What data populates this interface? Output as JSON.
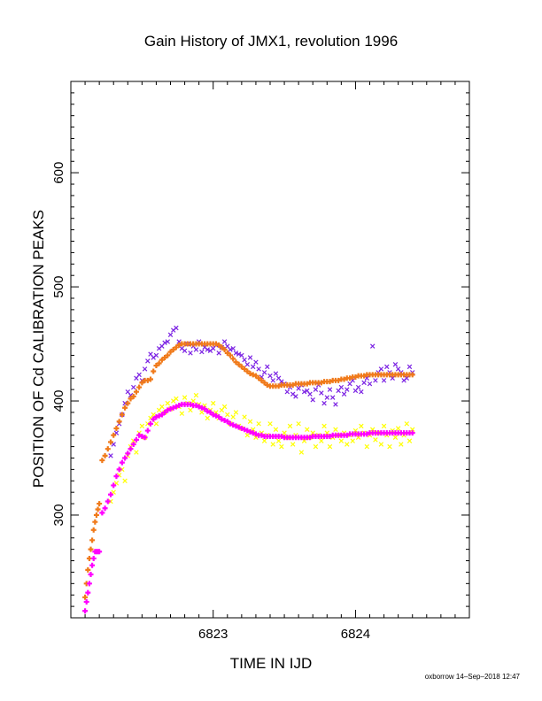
{
  "chart_data": {
    "type": "scatter",
    "title": "Gain History of JMX1, revolution 1996",
    "xlabel": "TIME IN IJD",
    "ylabel": "POSITION OF Cd CALIBRATION PEAKS",
    "xlim": [
      6822.0,
      6824.8
    ],
    "ylim": [
      210,
      680
    ],
    "x_ticks": [
      6823,
      6824
    ],
    "x_tick_labels": [
      "6823",
      "6824"
    ],
    "y_ticks": [
      300,
      400,
      500,
      600
    ],
    "y_tick_labels": [
      "300",
      "400",
      "500",
      "600"
    ],
    "grid": false,
    "legend": "none",
    "series": [
      {
        "marker": "x",
        "color": "#7b22e3",
        "x": [
          6822.28,
          6822.3,
          6822.32,
          6822.34,
          6822.36,
          6822.38,
          6822.4,
          6822.42,
          6822.44,
          6822.46,
          6822.48,
          6822.5,
          6822.52,
          6822.54,
          6822.56,
          6822.58,
          6822.6,
          6822.62,
          6822.64,
          6822.66,
          6822.68,
          6822.7,
          6822.72,
          6822.74,
          6822.76,
          6822.78,
          6822.8,
          6822.82,
          6822.84,
          6822.86,
          6822.88,
          6822.9,
          6822.92,
          6822.94,
          6822.96,
          6822.98,
          6823.0,
          6823.02,
          6823.04,
          6823.06,
          6823.08,
          6823.1,
          6823.12,
          6823.14,
          6823.16,
          6823.18,
          6823.2,
          6823.22,
          6823.24,
          6823.26,
          6823.28,
          6823.3,
          6823.32,
          6823.34,
          6823.36,
          6823.38,
          6823.4,
          6823.42,
          6823.44,
          6823.46,
          6823.48,
          6823.5,
          6823.52,
          6823.54,
          6823.56,
          6823.58,
          6823.6,
          6823.62,
          6823.64,
          6823.66,
          6823.68,
          6823.7,
          6823.72,
          6823.74,
          6823.76,
          6823.78,
          6823.8,
          6823.82,
          6823.84,
          6823.86,
          6823.88,
          6823.9,
          6823.92,
          6823.94,
          6823.96,
          6823.98,
          6824.0,
          6824.02,
          6824.04,
          6824.06,
          6824.08,
          6824.1,
          6824.12,
          6824.14,
          6824.16,
          6824.18,
          6824.2,
          6824.22,
          6824.24,
          6824.26,
          6824.28,
          6824.3,
          6824.32,
          6824.34,
          6824.36,
          6824.38,
          6824.4
        ],
        "y": [
          352,
          362,
          372,
          380,
          388,
          398,
          408,
          405,
          412,
          420,
          423,
          418,
          428,
          435,
          441,
          438,
          440,
          446,
          448,
          451,
          452,
          458,
          462,
          464,
          452,
          446,
          444,
          450,
          442,
          448,
          445,
          452,
          443,
          447,
          445,
          444,
          446,
          449,
          442,
          447,
          452,
          448,
          445,
          446,
          442,
          441,
          440,
          436,
          432,
          438,
          430,
          434,
          428,
          421,
          425,
          430,
          422,
          418,
          424,
          420,
          417,
          415,
          408,
          412,
          406,
          404,
          411,
          414,
          408,
          409,
          406,
          401,
          410,
          414,
          407,
          398,
          403,
          410,
          403,
          397,
          409,
          412,
          406,
          410,
          415,
          418,
          409,
          412,
          408,
          416,
          420,
          415,
          448,
          418,
          425,
          428,
          418,
          430,
          425,
          420,
          432,
          428,
          425,
          418,
          420,
          430,
          425
        ]
      },
      {
        "marker": "+",
        "color": "#f07a1a",
        "x": [
          6822.1,
          6822.11,
          6822.12,
          6822.13,
          6822.14,
          6822.15,
          6822.16,
          6822.17,
          6822.18,
          6822.19,
          6822.2,
          6822.22,
          6822.24,
          6822.26,
          6822.28,
          6822.3,
          6822.32,
          6822.34,
          6822.36,
          6822.38,
          6822.4,
          6822.42,
          6822.44,
          6822.46,
          6822.48,
          6822.5,
          6822.52,
          6822.54,
          6822.56,
          6822.58,
          6822.6,
          6822.62,
          6822.64,
          6822.66,
          6822.68,
          6822.7,
          6822.72,
          6822.74,
          6822.76,
          6822.78,
          6822.8,
          6822.82,
          6822.84,
          6822.86,
          6822.88,
          6822.9,
          6822.92,
          6822.94,
          6822.96,
          6822.98,
          6823.0,
          6823.02,
          6823.04,
          6823.06,
          6823.08,
          6823.1,
          6823.12,
          6823.14,
          6823.16,
          6823.18,
          6823.2,
          6823.22,
          6823.24,
          6823.26,
          6823.28,
          6823.3,
          6823.32,
          6823.34,
          6823.36,
          6823.38,
          6823.4,
          6823.42,
          6823.44,
          6823.46,
          6823.48,
          6823.5,
          6823.52,
          6823.54,
          6823.56,
          6823.58,
          6823.6,
          6823.62,
          6823.64,
          6823.66,
          6823.68,
          6823.7,
          6823.72,
          6823.74,
          6823.76,
          6823.78,
          6823.8,
          6823.82,
          6823.84,
          6823.86,
          6823.88,
          6823.9,
          6823.92,
          6823.94,
          6823.96,
          6823.98,
          6824.0,
          6824.02,
          6824.04,
          6824.06,
          6824.08,
          6824.1,
          6824.12,
          6824.14,
          6824.16,
          6824.18,
          6824.2,
          6824.22,
          6824.24,
          6824.26,
          6824.28,
          6824.3,
          6824.32,
          6824.34,
          6824.36,
          6824.38,
          6824.4
        ],
        "y": [
          228,
          240,
          252,
          262,
          270,
          278,
          287,
          294,
          300,
          305,
          310,
          348,
          352,
          358,
          364,
          370,
          376,
          382,
          388,
          394,
          398,
          402,
          404,
          408,
          412,
          416,
          418,
          418,
          419,
          426,
          431,
          433,
          436,
          438,
          440,
          443,
          445,
          447,
          449,
          450,
          450,
          450,
          450,
          450,
          450,
          450,
          450,
          450,
          450,
          450,
          450,
          450,
          449,
          447,
          445,
          442,
          440,
          437,
          434,
          432,
          430,
          428,
          426,
          424,
          423,
          422,
          420,
          418,
          416,
          414,
          413,
          413,
          413,
          413,
          414,
          414,
          414,
          414,
          414,
          415,
          415,
          415,
          415,
          415,
          416,
          416,
          416,
          416,
          416,
          417,
          417,
          417,
          418,
          418,
          418,
          419,
          419,
          420,
          420,
          421,
          421,
          422,
          422,
          422,
          423,
          423,
          423,
          423,
          423,
          423,
          423,
          423,
          423,
          423,
          423,
          423,
          423,
          423,
          423,
          423,
          423
        ]
      },
      {
        "marker": "x",
        "color": "#ffff00",
        "x": [
          6822.28,
          6822.3,
          6822.32,
          6822.34,
          6822.36,
          6822.38,
          6822.4,
          6822.42,
          6822.44,
          6822.46,
          6822.48,
          6822.5,
          6822.52,
          6822.54,
          6822.56,
          6822.58,
          6822.6,
          6822.62,
          6822.64,
          6822.66,
          6822.68,
          6822.7,
          6822.72,
          6822.74,
          6822.76,
          6822.78,
          6822.8,
          6822.82,
          6822.84,
          6822.86,
          6822.88,
          6822.9,
          6822.92,
          6822.94,
          6822.96,
          6822.98,
          6823.0,
          6823.02,
          6823.04,
          6823.06,
          6823.08,
          6823.1,
          6823.12,
          6823.14,
          6823.16,
          6823.18,
          6823.2,
          6823.22,
          6823.24,
          6823.26,
          6823.28,
          6823.3,
          6823.32,
          6823.34,
          6823.36,
          6823.38,
          6823.4,
          6823.42,
          6823.44,
          6823.46,
          6823.48,
          6823.5,
          6823.52,
          6823.54,
          6823.56,
          6823.58,
          6823.6,
          6823.62,
          6823.64,
          6823.66,
          6823.68,
          6823.7,
          6823.72,
          6823.74,
          6823.76,
          6823.78,
          6823.8,
          6823.82,
          6823.84,
          6823.86,
          6823.88,
          6823.9,
          6823.92,
          6823.94,
          6823.96,
          6823.98,
          6824.0,
          6824.02,
          6824.04,
          6824.06,
          6824.08,
          6824.1,
          6824.12,
          6824.14,
          6824.16,
          6824.18,
          6824.2,
          6824.22,
          6824.24,
          6824.26,
          6824.28,
          6824.3,
          6824.32,
          6824.34,
          6824.36,
          6824.38,
          6824.4
        ],
        "y": [
          312,
          320,
          328,
          335,
          340,
          330,
          352,
          360,
          365,
          355,
          372,
          378,
          368,
          380,
          385,
          388,
          380,
          392,
          395,
          390,
          398,
          393,
          400,
          402,
          395,
          389,
          403,
          398,
          392,
          400,
          405,
          397,
          390,
          396,
          385,
          392,
          398,
          390,
          385,
          392,
          395,
          388,
          380,
          386,
          390,
          378,
          376,
          386,
          370,
          382,
          375,
          368,
          380,
          372,
          365,
          370,
          380,
          362,
          375,
          365,
          360,
          372,
          368,
          378,
          362,
          370,
          380,
          355,
          365,
          375,
          368,
          372,
          360,
          370,
          365,
          378,
          372,
          360,
          368,
          375,
          370,
          365,
          372,
          362,
          370,
          365,
          374,
          368,
          378,
          372,
          360,
          370,
          375,
          366,
          372,
          362,
          378,
          370,
          360,
          374,
          368,
          376,
          362,
          370,
          380,
          365,
          375
        ]
      },
      {
        "marker": "+",
        "color": "#ff00ff",
        "x": [
          6822.1,
          6822.11,
          6822.12,
          6822.13,
          6822.14,
          6822.15,
          6822.16,
          6822.17,
          6822.18,
          6822.19,
          6822.2,
          6822.22,
          6822.24,
          6822.26,
          6822.28,
          6822.3,
          6822.32,
          6822.34,
          6822.36,
          6822.38,
          6822.4,
          6822.42,
          6822.44,
          6822.46,
          6822.48,
          6822.5,
          6822.52,
          6822.54,
          6822.56,
          6822.58,
          6822.6,
          6822.62,
          6822.64,
          6822.66,
          6822.68,
          6822.7,
          6822.72,
          6822.74,
          6822.76,
          6822.78,
          6822.8,
          6822.82,
          6822.84,
          6822.86,
          6822.88,
          6822.9,
          6822.92,
          6822.94,
          6822.96,
          6822.98,
          6823.0,
          6823.02,
          6823.04,
          6823.06,
          6823.08,
          6823.1,
          6823.12,
          6823.14,
          6823.16,
          6823.18,
          6823.2,
          6823.22,
          6823.24,
          6823.26,
          6823.28,
          6823.3,
          6823.32,
          6823.34,
          6823.36,
          6823.38,
          6823.4,
          6823.42,
          6823.44,
          6823.46,
          6823.48,
          6823.5,
          6823.52,
          6823.54,
          6823.56,
          6823.58,
          6823.6,
          6823.62,
          6823.64,
          6823.66,
          6823.68,
          6823.7,
          6823.72,
          6823.74,
          6823.76,
          6823.78,
          6823.8,
          6823.82,
          6823.84,
          6823.86,
          6823.88,
          6823.9,
          6823.92,
          6823.94,
          6823.96,
          6823.98,
          6824.0,
          6824.02,
          6824.04,
          6824.06,
          6824.08,
          6824.1,
          6824.12,
          6824.14,
          6824.16,
          6824.18,
          6824.2,
          6824.22,
          6824.24,
          6824.26,
          6824.28,
          6824.3,
          6824.32,
          6824.34,
          6824.36,
          6824.38,
          6824.4
        ],
        "y": [
          216,
          224,
          232,
          240,
          248,
          256,
          262,
          268,
          268,
          268,
          268,
          302,
          306,
          312,
          318,
          326,
          334,
          340,
          346,
          350,
          354,
          358,
          362,
          366,
          370,
          369,
          368,
          374,
          380,
          384,
          386,
          387,
          388,
          390,
          392,
          393,
          394,
          395,
          396,
          397,
          397,
          397,
          397,
          396,
          396,
          395,
          394,
          393,
          391,
          390,
          388,
          387,
          386,
          384,
          383,
          382,
          380,
          379,
          378,
          377,
          376,
          375,
          374,
          373,
          372,
          371,
          370,
          370,
          369,
          369,
          369,
          369,
          369,
          369,
          369,
          368,
          368,
          368,
          368,
          368,
          368,
          368,
          368,
          368,
          368,
          369,
          369,
          369,
          369,
          369,
          369,
          369,
          370,
          370,
          370,
          370,
          370,
          370,
          371,
          371,
          371,
          371,
          371,
          371,
          371,
          372,
          372,
          372,
          372,
          372,
          372,
          372,
          372,
          372,
          372,
          372,
          372,
          372,
          372,
          372,
          372
        ]
      }
    ]
  },
  "footer": {
    "credit": "oxborrow 14–Sep–2018 12:47"
  }
}
